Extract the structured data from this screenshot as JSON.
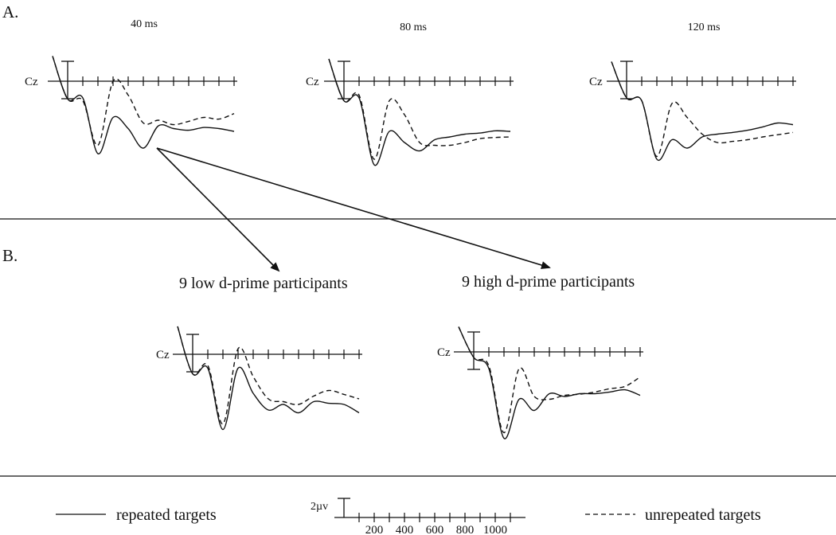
{
  "figure": {
    "panel_a_label": "A.",
    "panel_b_label": "B.",
    "electrode": "Cz",
    "amplitude_unit": "2µv",
    "group_low": "9 low d-prime participants",
    "group_high": "9 high d-prime participants",
    "legend": {
      "solid": "repeated targets",
      "dashed": "unrepeated targets"
    },
    "time_ticks": [
      "200",
      "400",
      "600",
      "800",
      "1000"
    ]
  },
  "chart_data": [
    {
      "type": "line",
      "title": "40 ms",
      "electrode": "Cz",
      "x_unit": "ms",
      "xlim": [
        -100,
        1100
      ],
      "x": [
        -100,
        0,
        100,
        200,
        300,
        400,
        500,
        600,
        700,
        800,
        900,
        1000,
        1100
      ],
      "series": [
        {
          "name": "repeated targets",
          "style": "solid",
          "values": [
            4.5,
            -3.2,
            -3.0,
            -13,
            -6.5,
            -8.5,
            -12,
            -8,
            -8.5,
            -8.8,
            -8.3,
            -8.5,
            -9
          ]
        },
        {
          "name": "unrepeated targets",
          "style": "dashed",
          "values": [
            4.5,
            -3.2,
            -3.5,
            -11.5,
            0,
            -2.5,
            -7.5,
            -7,
            -7.8,
            -7.2,
            -6.5,
            -6.8,
            -5.8
          ]
        }
      ]
    },
    {
      "type": "line",
      "title": "80 ms",
      "electrode": "Cz",
      "x_unit": "ms",
      "xlim": [
        -100,
        1100
      ],
      "x": [
        -100,
        0,
        100,
        200,
        300,
        400,
        500,
        600,
        700,
        800,
        900,
        1000,
        1100
      ],
      "series": [
        {
          "name": "repeated targets",
          "style": "solid",
          "values": [
            4.0,
            -3.5,
            -3.0,
            -15,
            -9,
            -11,
            -12.5,
            -10.5,
            -10,
            -9.5,
            -9.3,
            -8.9,
            -9
          ]
        },
        {
          "name": "unrepeated targets",
          "style": "dashed",
          "values": [
            4.0,
            -3.5,
            -2.5,
            -14,
            -3.5,
            -6,
            -11,
            -11.5,
            -11.5,
            -11,
            -10.3,
            -10.1,
            -10
          ]
        }
      ]
    },
    {
      "type": "line",
      "title": "120 ms",
      "electrode": "Cz",
      "x_unit": "ms",
      "xlim": [
        -100,
        1100
      ],
      "x": [
        -100,
        0,
        100,
        200,
        300,
        400,
        500,
        600,
        700,
        800,
        900,
        1000,
        1100
      ],
      "series": [
        {
          "name": "repeated targets",
          "style": "solid",
          "values": [
            3.5,
            -3.0,
            -3.5,
            -14,
            -10.5,
            -12,
            -10,
            -9.5,
            -9.2,
            -8.8,
            -8.2,
            -7.5,
            -7.8
          ]
        },
        {
          "name": "unrepeated targets",
          "style": "dashed",
          "values": [
            3.5,
            -3.0,
            -3.5,
            -13.5,
            -4,
            -6.5,
            -9.5,
            -11,
            -10.8,
            -10.5,
            -10,
            -9.6,
            -9.2
          ]
        }
      ]
    },
    {
      "type": "line",
      "title": "9 low d-prime participants",
      "electrode": "Cz",
      "x_unit": "ms",
      "xlim": [
        -100,
        1100
      ],
      "x": [
        -100,
        0,
        100,
        200,
        300,
        400,
        500,
        600,
        700,
        800,
        900,
        1000,
        1100
      ],
      "series": [
        {
          "name": "repeated targets",
          "style": "solid",
          "values": [
            5.0,
            -3.5,
            -2.5,
            -13.5,
            -2.5,
            -7,
            -10,
            -9,
            -10.5,
            -8.5,
            -8.8,
            -9,
            -10.5
          ]
        },
        {
          "name": "unrepeated targets",
          "style": "dashed",
          "values": [
            5.0,
            -3.5,
            -2.0,
            -12.5,
            1,
            -4,
            -8,
            -8.5,
            -9,
            -7.5,
            -6.5,
            -7.2,
            -8
          ]
        }
      ]
    },
    {
      "type": "line",
      "title": "9 high d-prime participants",
      "electrode": "Cz",
      "x_unit": "ms",
      "xlim": [
        -100,
        1100
      ],
      "x": [
        -100,
        0,
        100,
        200,
        300,
        400,
        500,
        600,
        700,
        800,
        900,
        1000,
        1100
      ],
      "series": [
        {
          "name": "repeated targets",
          "style": "solid",
          "values": [
            4.5,
            -1.0,
            -3.0,
            -15.5,
            -8.5,
            -10.5,
            -7.5,
            -8,
            -7.5,
            -7.5,
            -7.2,
            -6.8,
            -7.8
          ]
        },
        {
          "name": "unrepeated targets",
          "style": "dashed",
          "values": [
            4.5,
            -1.0,
            -2.5,
            -14.5,
            -3,
            -8,
            -8.5,
            -7.8,
            -7.6,
            -7.2,
            -6.6,
            -6.2,
            -4.5
          ]
        }
      ]
    }
  ]
}
